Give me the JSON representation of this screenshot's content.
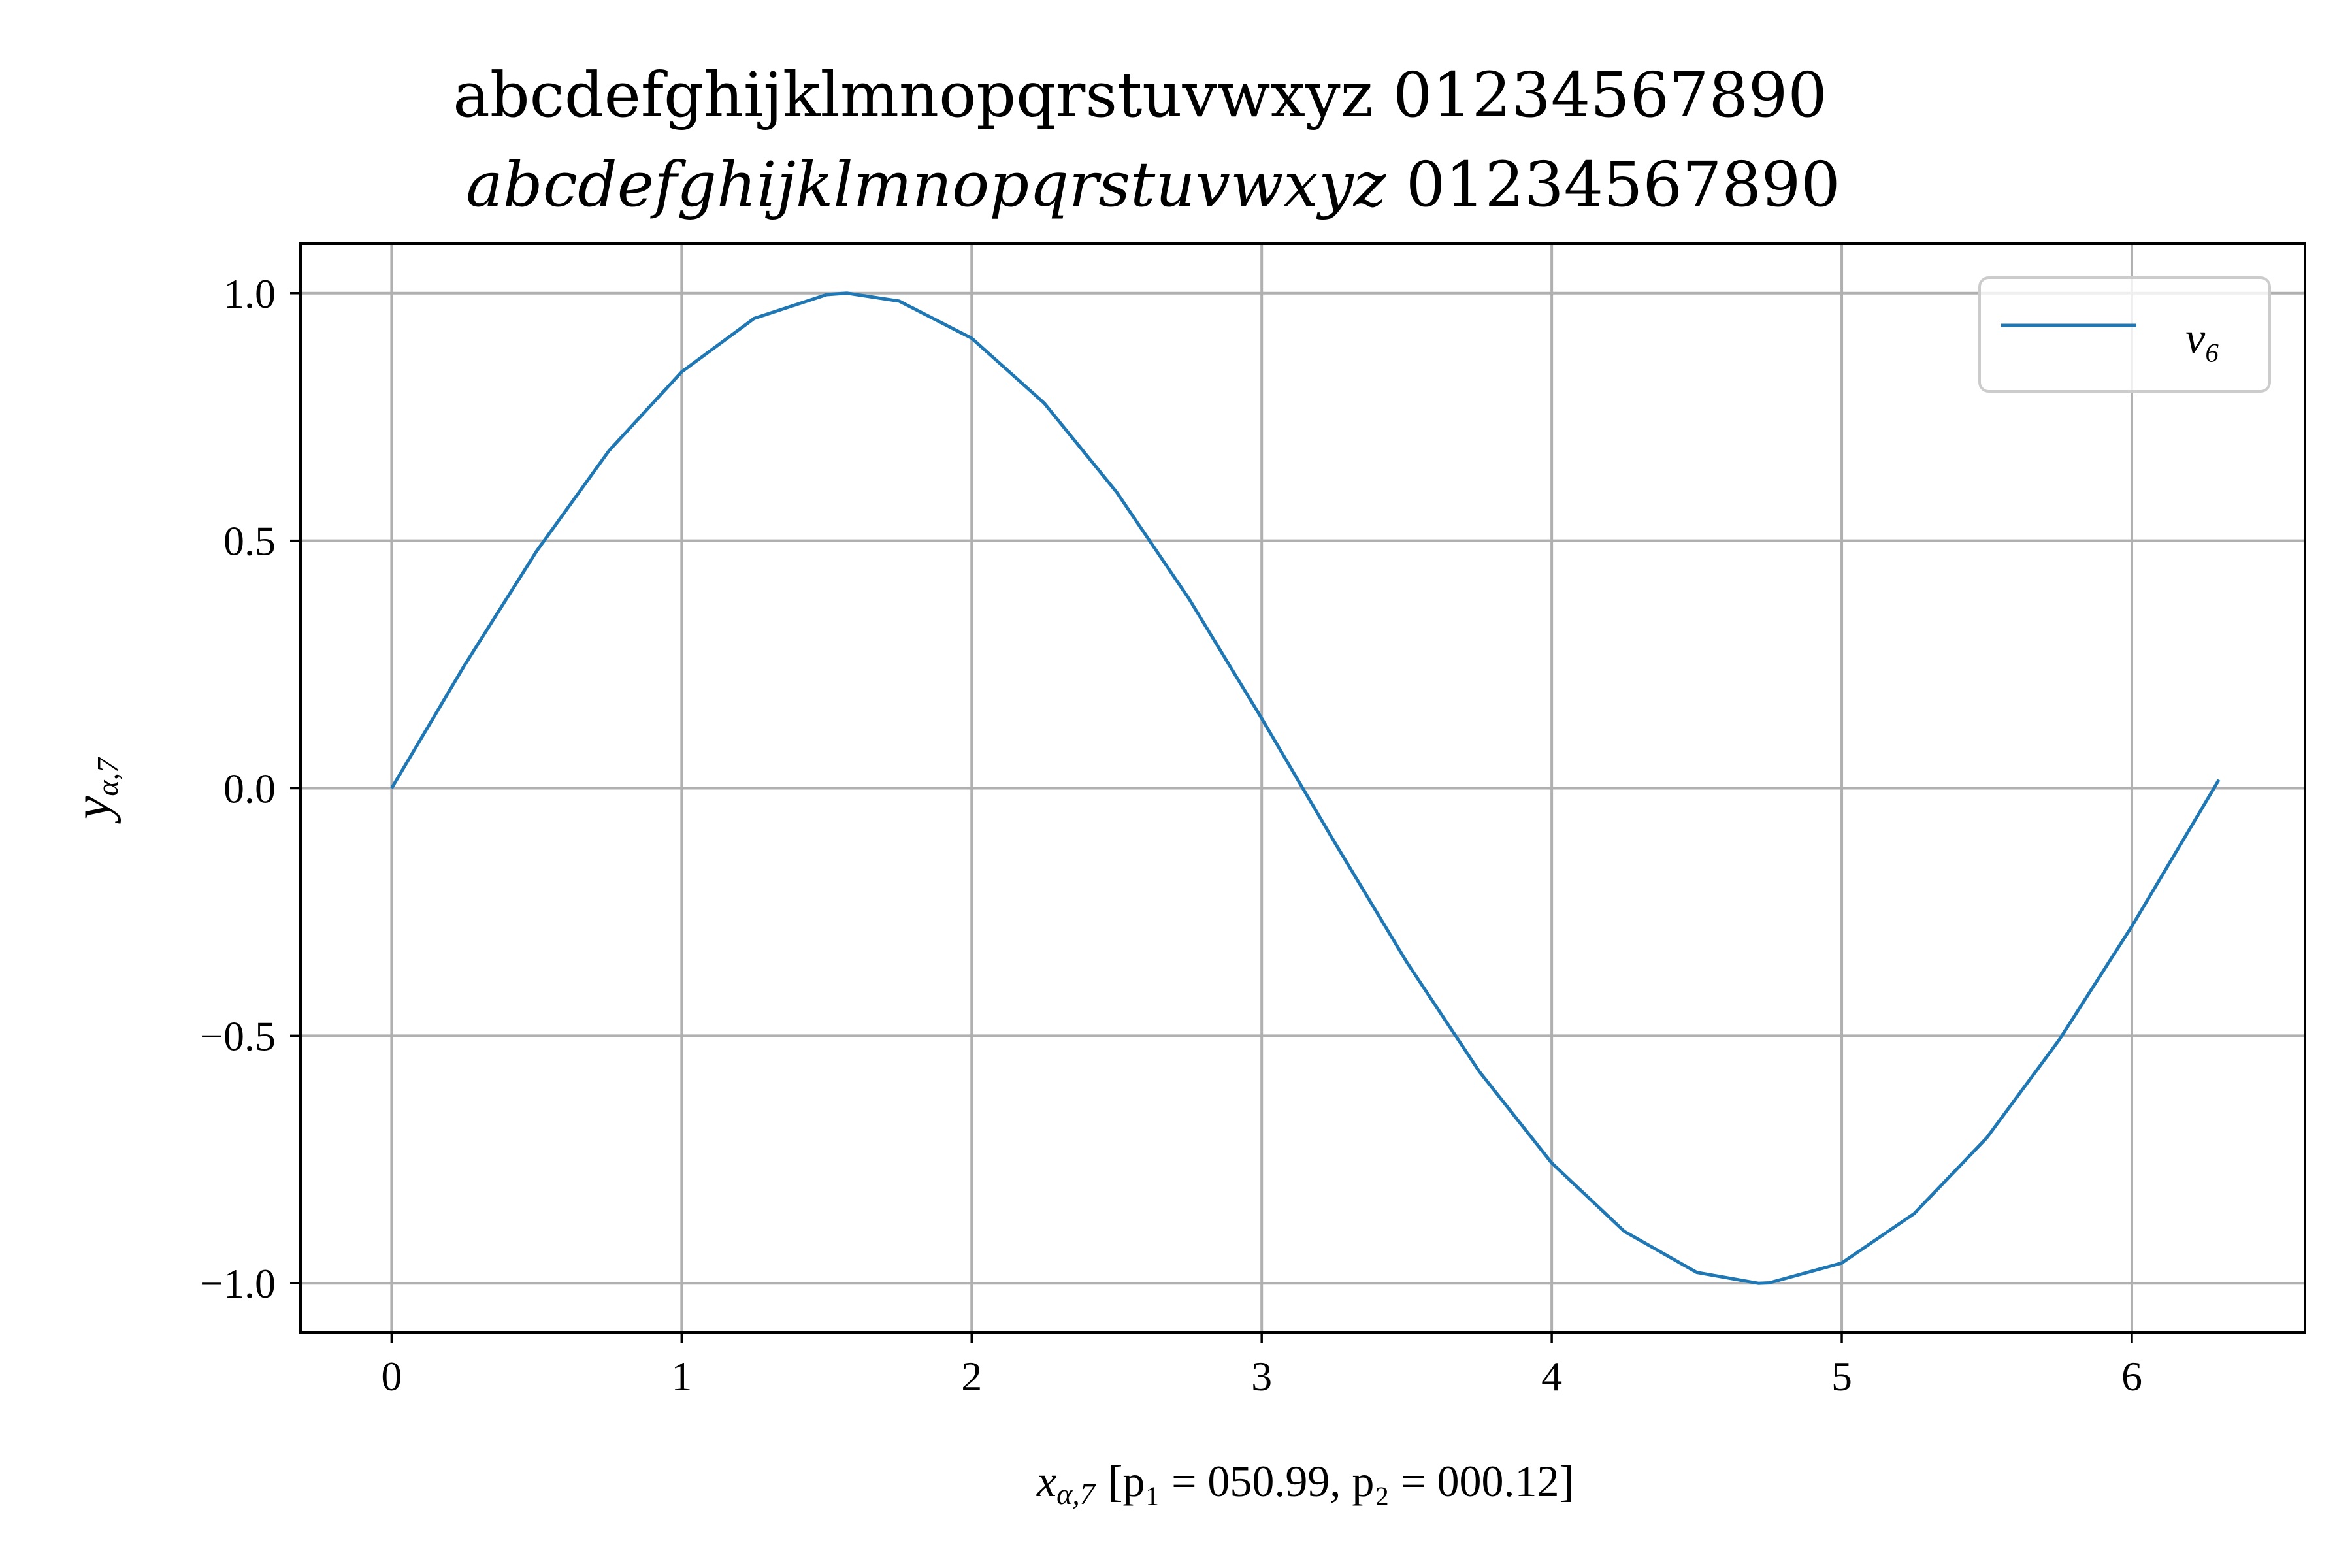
{
  "chart_data": {
    "type": "line",
    "title_line1": "abcdefghijklmnopqrstuvwxyz 01234567890",
    "title_line2_italic": "abcdefghijklmnopqrstuvwxyz",
    "title_line2_digits": "01234567890",
    "xlabel_italic": "x",
    "xlabel_sub": "α,7",
    "xlabel_rest": "[p₁ = 050.99, p₂ = 000.12]",
    "ylabel_italic": "y",
    "ylabel_sub": "α,7",
    "xlim": [
      -0.314,
      6.597
    ],
    "ylim": [
      -1.1,
      1.1
    ],
    "xticks": [
      0,
      1,
      2,
      3,
      4,
      5,
      6
    ],
    "xtick_labels": [
      "0",
      "1",
      "2",
      "3",
      "4",
      "5",
      "6"
    ],
    "yticks": [
      1.0,
      0.5,
      0.0,
      -0.5,
      -1.0
    ],
    "ytick_labels": [
      "1.0",
      "0.5",
      "0.0",
      "−0.5",
      "−1.0"
    ],
    "grid": true,
    "legend_placement": "top-right",
    "series": [
      {
        "name": "v₆",
        "color": "#1f77b4",
        "x": [
          0,
          0.25,
          0.5,
          0.75,
          1.0,
          1.25,
          1.5,
          1.5708,
          1.75,
          2.0,
          2.25,
          2.5,
          2.75,
          3.0,
          3.1416,
          3.25,
          3.5,
          3.75,
          4.0,
          4.25,
          4.5,
          4.7124,
          4.75,
          5.0,
          5.25,
          5.5,
          5.75,
          6.0,
          6.2832,
          6.3
        ],
        "y": [
          0.0,
          0.247,
          0.479,
          0.682,
          0.841,
          0.949,
          0.997,
          1.0,
          0.984,
          0.909,
          0.778,
          0.598,
          0.382,
          0.141,
          0.0,
          -0.108,
          -0.351,
          -0.572,
          -0.757,
          -0.895,
          -0.978,
          -1.0,
          -0.999,
          -0.959,
          -0.859,
          -0.706,
          -0.508,
          -0.279,
          0.0,
          0.017
        ]
      }
    ]
  }
}
